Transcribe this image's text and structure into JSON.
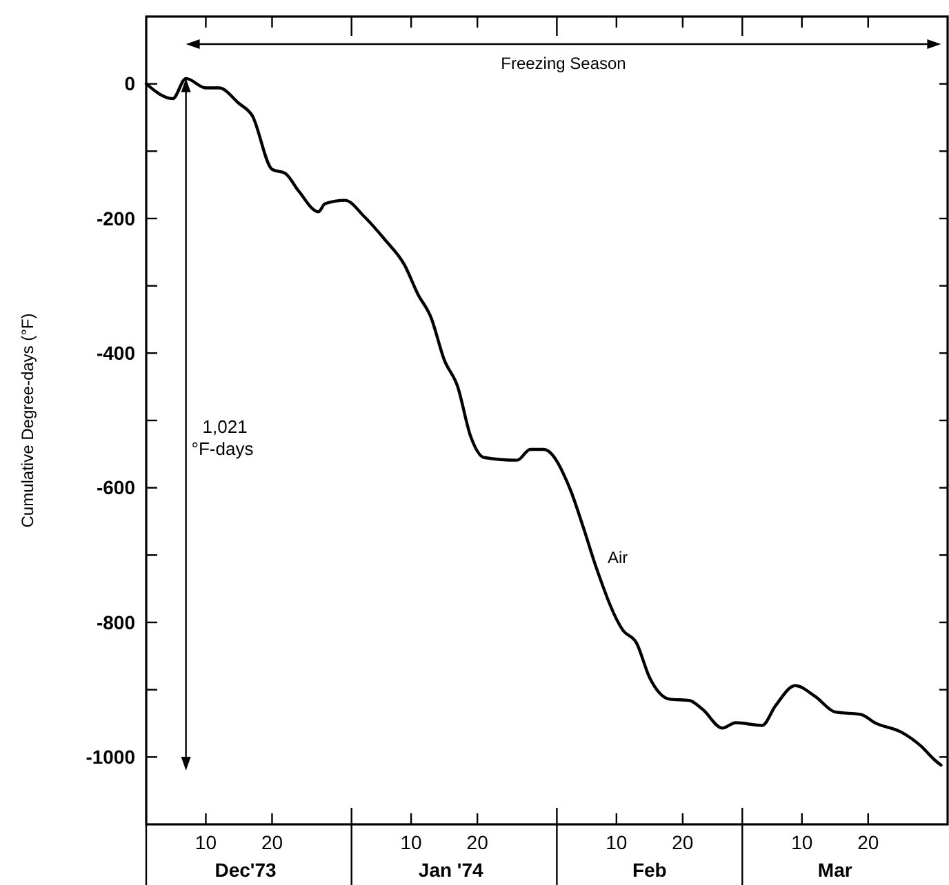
{
  "chart_data": {
    "type": "line",
    "ylabel": "Cumulative Degree-days (°F)",
    "xlim": [
      "1973-12-01",
      "1974-04-01"
    ],
    "ylim": [
      -1100,
      100
    ],
    "yticks": [
      -1000,
      {
        "value": -900,
        "label": null
      },
      -800,
      {
        "value": -700,
        "label": null
      },
      -600,
      {
        "value": -500,
        "label": null
      },
      -400,
      {
        "value": -300,
        "label": null
      },
      -200,
      {
        "value": -100,
        "label": null
      },
      0
    ],
    "xticks": [
      {
        "value": "1973-12-10",
        "label": "10"
      },
      {
        "value": "1973-12-20",
        "label": "20"
      },
      {
        "value": "1974-01-01",
        "label": null
      },
      {
        "value": "1974-01-10",
        "label": "10"
      },
      {
        "value": "1974-01-20",
        "label": "20"
      },
      {
        "value": "1974-02-01",
        "label": null
      },
      {
        "value": "1974-02-10",
        "label": "10"
      },
      {
        "value": "1974-02-20",
        "label": "20"
      },
      {
        "value": "1974-03-01",
        "label": null
      },
      {
        "value": "1974-03-10",
        "label": "10"
      },
      {
        "value": "1974-03-20",
        "label": "20"
      }
    ],
    "x2lim": [
      "1973-12-01",
      "1974-04-01"
    ],
    "x2ticks": [
      {
        "value": "1973-12-16",
        "label": "Dec'73"
      },
      {
        "value": "1974-01-16",
        "label": "Jan '74"
      },
      {
        "value": "1974-02-15",
        "label": "Feb"
      },
      {
        "value": "1974-03-15",
        "label": "Mar"
      }
    ],
    "annotations": [
      "Freezing Season",
      "1,021 °F-days"
    ],
    "series": [
      {
        "name": "Air",
        "color": "#000000",
        "x": [
          "1973-12-01",
          "1973-12-05",
          "1973-12-07",
          "1973-12-10",
          "1973-12-12",
          "1973-12-15",
          "1973-12-17",
          "1973-12-20",
          "1973-12-22",
          "1973-12-24",
          "1973-12-27",
          "1973-12-28",
          "1973-12-31",
          "1974-01-03",
          "1974-01-06",
          "1974-01-09",
          "1974-01-11",
          "1974-01-13",
          "1974-01-15",
          "1974-01-17",
          "1974-01-19",
          "1974-01-21",
          "1974-01-26",
          "1974-01-28",
          "1974-01-30",
          "1974-02-03",
          "1974-02-05",
          "1974-02-07",
          "1974-02-11",
          "1974-02-13",
          "1974-02-15",
          "1974-02-18",
          "1974-02-21",
          "1974-02-23",
          "1974-02-26",
          "1974-02-28",
          "1974-03-04",
          "1974-03-06",
          "1974-03-09",
          "1974-03-12",
          "1974-03-15",
          "1974-03-19",
          "1974-03-21",
          "1974-03-25",
          "1974-03-28",
          "1974-03-30",
          "1974-03-31"
        ],
        "values": [
          0,
          -22,
          8,
          -6,
          -6,
          -29,
          -47,
          -127,
          -133,
          -159,
          -190,
          -178,
          -173,
          -198,
          -231,
          -269,
          -312,
          -347,
          -410,
          -449,
          -524,
          -555,
          -559,
          -543,
          -543,
          -602,
          -659,
          -720,
          -812,
          -830,
          -882,
          -914,
          -916,
          -929,
          -957,
          -949,
          -953,
          -924,
          -894,
          -910,
          -933,
          -937,
          -949,
          -963,
          -984,
          -1004,
          -1012
        ]
      }
    ]
  }
}
